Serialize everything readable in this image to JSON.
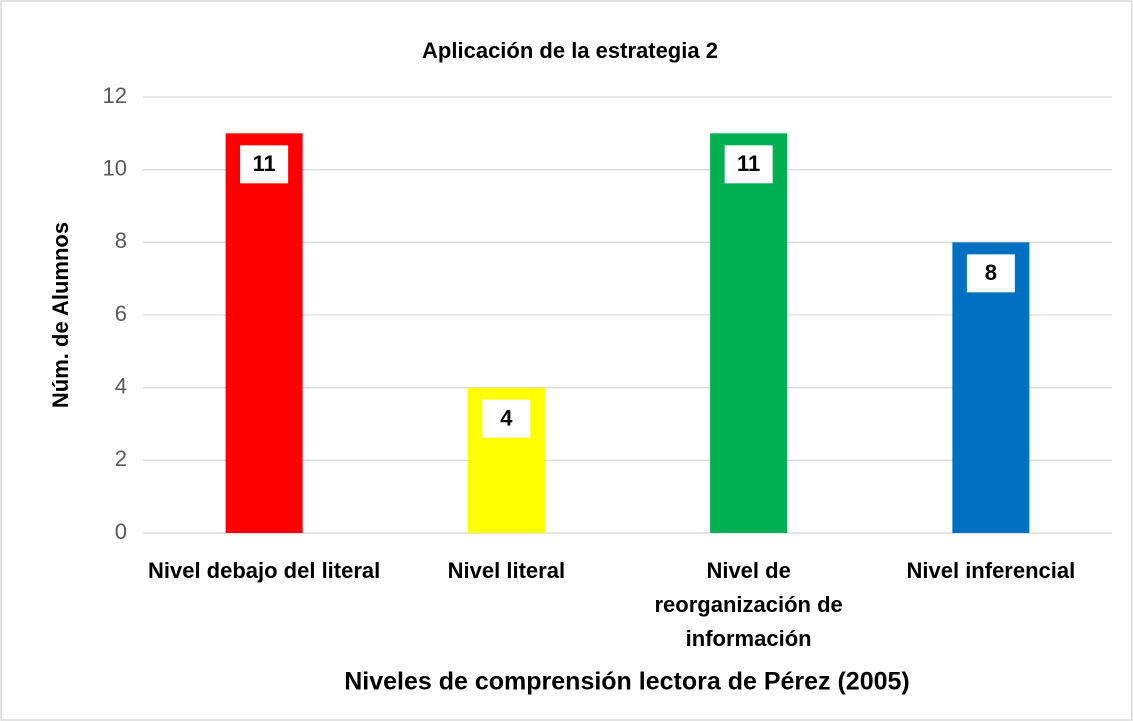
{
  "chart_data": {
    "type": "bar",
    "title": "Aplicación de la estrategia 2",
    "categories": [
      "Nivel debajo del literal",
      "Nivel literal",
      "Nivel de reorganización de información",
      "Nivel inferencial"
    ],
    "values": [
      11,
      4,
      11,
      8
    ],
    "colors": [
      "#ff0000",
      "#ffff00",
      "#00b050",
      "#0070c0"
    ],
    "x_label": "Niveles de comprensión lectora de Pérez (2005)",
    "y_label": "Núm. de Alumnos",
    "ylim": [
      0,
      12
    ],
    "yticks": [
      0,
      2,
      4,
      6,
      8,
      10,
      12
    ],
    "grid": true
  }
}
